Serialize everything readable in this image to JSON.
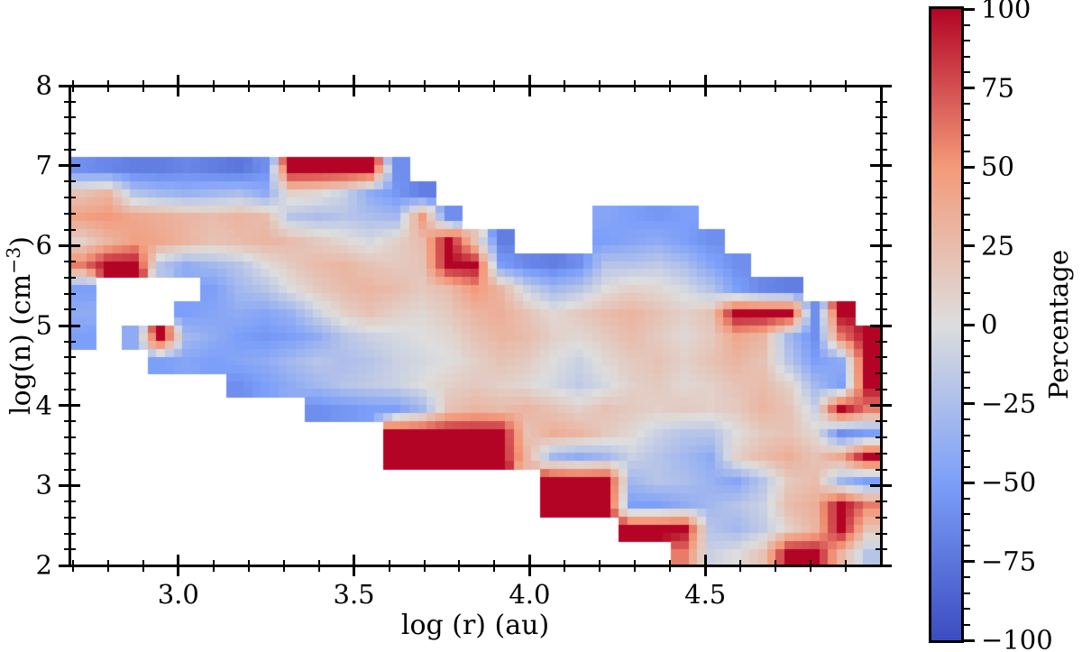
{
  "figure": {
    "background": "#ffffff"
  },
  "axes": {
    "x": {
      "label": "log (r) (au)",
      "range": [
        2.69,
        5.0
      ],
      "major_ticks": [
        {
          "value": 3.0,
          "label": "3.0"
        },
        {
          "value": 3.5,
          "label": "3.5"
        },
        {
          "value": 4.0,
          "label": "4.0"
        },
        {
          "value": 4.5,
          "label": "4.5"
        }
      ],
      "minor_step": 0.1
    },
    "y": {
      "label_pre": "log(n) (cm",
      "label_sup": "−3",
      "label_post": ")",
      "range": [
        2,
        8
      ],
      "major_ticks": [
        {
          "value": 8,
          "label": "8"
        },
        {
          "value": 7,
          "label": "7"
        },
        {
          "value": 6,
          "label": "6"
        },
        {
          "value": 5,
          "label": "5"
        },
        {
          "value": 4,
          "label": "4"
        },
        {
          "value": 3,
          "label": "3"
        },
        {
          "value": 2,
          "label": "2"
        }
      ],
      "minor_step": 0.2
    }
  },
  "colorbar": {
    "label": "Percentage",
    "range": [
      -100,
      100
    ],
    "major_ticks": [
      {
        "value": 100,
        "label": "100"
      },
      {
        "value": 75,
        "label": "75"
      },
      {
        "value": 50,
        "label": "50"
      },
      {
        "value": 25,
        "label": "25"
      },
      {
        "value": 0,
        "label": "0"
      },
      {
        "value": -25,
        "label": "−25"
      },
      {
        "value": -50,
        "label": "−50"
      },
      {
        "value": -75,
        "label": "−75"
      },
      {
        "value": -100,
        "label": "−100"
      }
    ],
    "minor_step": 5,
    "stops": [
      {
        "t": 0.0,
        "color": "#3b4cc0"
      },
      {
        "t": 0.25,
        "color": "#7c9ff9"
      },
      {
        "t": 0.5,
        "color": "#dddddd"
      },
      {
        "t": 0.75,
        "color": "#f49a7a"
      },
      {
        "t": 1.0,
        "color": "#b40426"
      }
    ]
  },
  "chart_data": {
    "type": "heatmap",
    "title": "",
    "xlabel": "log (r) (au)",
    "ylabel": "log(n) (cm−3)",
    "colorbar_label": "Percentage",
    "colormap": "coolwarm",
    "x_range": [
      2.69,
      5.0
    ],
    "y_range": [
      2,
      8
    ],
    "value_range": [
      -100,
      100
    ],
    "n_cols": 31,
    "n_rows": 20,
    "grid_order": "rows top (log n = 8) to bottom (log n = 2), cols left (log r = 2.69) to right (log r = 5.0), null = masked/empty",
    "grid": [
      [
        null,
        null,
        null,
        null,
        null,
        null,
        null,
        null,
        null,
        null,
        null,
        null,
        null,
        null,
        null,
        null,
        null,
        null,
        null,
        null,
        null,
        null,
        null,
        null,
        null,
        null,
        null,
        null,
        null,
        null,
        null
      ],
      [
        null,
        null,
        null,
        null,
        null,
        null,
        null,
        null,
        null,
        null,
        null,
        null,
        null,
        null,
        null,
        null,
        null,
        null,
        null,
        null,
        null,
        null,
        null,
        null,
        null,
        null,
        null,
        null,
        null,
        null,
        null
      ],
      [
        null,
        null,
        null,
        null,
        null,
        null,
        null,
        null,
        null,
        null,
        null,
        null,
        null,
        null,
        null,
        null,
        null,
        null,
        null,
        null,
        null,
        null,
        null,
        null,
        null,
        null,
        null,
        null,
        null,
        null,
        null
      ],
      [
        -60,
        -65,
        -70,
        -70,
        -65,
        -70,
        -75,
        -60,
        100,
        100,
        100,
        100,
        -60,
        null,
        null,
        null,
        null,
        null,
        null,
        null,
        null,
        null,
        null,
        null,
        null,
        null,
        null,
        null,
        null,
        null,
        null
      ],
      [
        20,
        30,
        -20,
        -30,
        -35,
        -30,
        -25,
        -40,
        10,
        5,
        -10,
        -40,
        -55,
        -70,
        null,
        null,
        null,
        null,
        null,
        null,
        null,
        null,
        null,
        null,
        null,
        null,
        null,
        null,
        null,
        null,
        null
      ],
      [
        45,
        50,
        40,
        35,
        30,
        25,
        30,
        25,
        -20,
        -25,
        -20,
        -25,
        -30,
        50,
        -60,
        null,
        null,
        null,
        null,
        null,
        -45,
        -50,
        -55,
        -50,
        null,
        null,
        null,
        null,
        null,
        null,
        null
      ],
      [
        10,
        30,
        45,
        40,
        30,
        20,
        25,
        30,
        25,
        15,
        5,
        -5,
        10,
        25,
        100,
        20,
        -70,
        null,
        null,
        null,
        -50,
        -45,
        -40,
        -50,
        -60,
        null,
        null,
        null,
        null,
        null,
        null
      ],
      [
        60,
        100,
        100,
        -20,
        -40,
        -30,
        -20,
        0,
        15,
        25,
        30,
        20,
        15,
        20,
        100,
        100,
        -50,
        -65,
        -70,
        -60,
        -20,
        -20,
        -15,
        -25,
        -45,
        -60,
        null,
        null,
        null,
        null,
        null
      ],
      [
        -50,
        null,
        null,
        null,
        null,
        -50,
        -30,
        -20,
        0,
        15,
        25,
        30,
        25,
        15,
        25,
        50,
        30,
        -10,
        -30,
        -20,
        0,
        10,
        5,
        -5,
        -20,
        -50,
        -65,
        -70,
        null,
        null,
        null
      ],
      [
        -40,
        null,
        null,
        null,
        -50,
        -45,
        -40,
        -45,
        -35,
        -10,
        10,
        20,
        10,
        5,
        15,
        30,
        35,
        20,
        5,
        15,
        25,
        30,
        20,
        10,
        20,
        100,
        100,
        100,
        -60,
        100,
        null
      ],
      [
        -50,
        null,
        -40,
        100,
        -30,
        -40,
        -50,
        -55,
        -50,
        -40,
        -20,
        -10,
        -5,
        0,
        5,
        20,
        30,
        25,
        10,
        5,
        15,
        25,
        15,
        5,
        15,
        40,
        30,
        -30,
        -60,
        60,
        100
      ],
      [
        null,
        null,
        null,
        -50,
        -45,
        -50,
        -45,
        -40,
        -30,
        -20,
        -25,
        -20,
        -10,
        -5,
        0,
        10,
        20,
        15,
        0,
        -10,
        5,
        15,
        20,
        10,
        20,
        30,
        20,
        -20,
        -50,
        -40,
        100
      ],
      [
        null,
        null,
        null,
        null,
        null,
        null,
        -60,
        -50,
        -40,
        -30,
        -20,
        -15,
        -10,
        0,
        10,
        15,
        10,
        5,
        -5,
        -15,
        -5,
        10,
        15,
        5,
        10,
        20,
        25,
        10,
        -30,
        -50,
        100
      ],
      [
        null,
        null,
        null,
        null,
        null,
        null,
        null,
        null,
        null,
        -60,
        -55,
        -50,
        -50,
        -30,
        20,
        30,
        25,
        30,
        20,
        10,
        20,
        15,
        10,
        15,
        10,
        15,
        30,
        20,
        -10,
        100,
        60
      ],
      [
        null,
        null,
        null,
        null,
        null,
        null,
        null,
        null,
        null,
        null,
        null,
        null,
        100,
        100,
        100,
        100,
        100,
        20,
        35,
        30,
        15,
        5,
        -10,
        -20,
        -20,
        0,
        15,
        20,
        5,
        -60,
        -50
      ],
      [
        null,
        null,
        null,
        null,
        null,
        null,
        null,
        null,
        null,
        null,
        null,
        null,
        100,
        100,
        100,
        100,
        100,
        30,
        -30,
        -40,
        -30,
        -10,
        -20,
        -30,
        -40,
        10,
        25,
        35,
        20,
        40,
        100
      ],
      [
        null,
        null,
        null,
        null,
        null,
        null,
        null,
        null,
        null,
        null,
        null,
        null,
        null,
        null,
        null,
        null,
        null,
        null,
        100,
        100,
        100,
        -30,
        -20,
        -25,
        -35,
        -45,
        -20,
        15,
        25,
        -30,
        -50
      ],
      [
        null,
        null,
        null,
        null,
        null,
        null,
        null,
        null,
        null,
        null,
        null,
        null,
        null,
        null,
        null,
        null,
        null,
        null,
        100,
        100,
        100,
        -50,
        -50,
        -40,
        -30,
        -20,
        -10,
        25,
        35,
        100,
        60
      ],
      [
        null,
        null,
        null,
        null,
        null,
        null,
        null,
        null,
        null,
        null,
        null,
        null,
        null,
        null,
        null,
        null,
        null,
        null,
        null,
        null,
        null,
        100,
        100,
        100,
        -20,
        -30,
        -15,
        10,
        30,
        100,
        20
      ],
      [
        null,
        null,
        null,
        null,
        null,
        null,
        null,
        null,
        null,
        null,
        null,
        null,
        null,
        null,
        null,
        null,
        null,
        null,
        null,
        null,
        null,
        null,
        null,
        60,
        -10,
        0,
        20,
        100,
        100,
        30,
        -20
      ]
    ]
  }
}
